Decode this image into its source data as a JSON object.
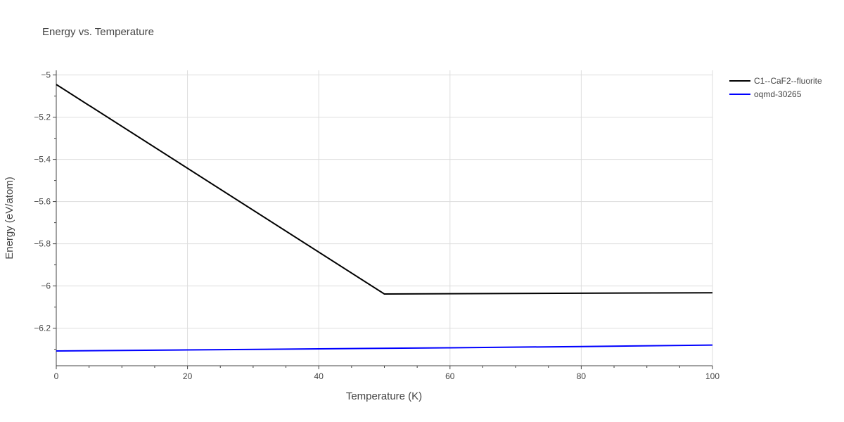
{
  "chart_data": {
    "type": "line",
    "title": "Energy vs. Temperature",
    "xlabel": "Temperature (K)",
    "ylabel": "Energy (eV/atom)",
    "xlim": [
      0,
      100
    ],
    "ylim": [
      -6.378,
      -4.978
    ],
    "x_ticks": [
      0,
      20,
      40,
      60,
      80,
      100
    ],
    "x_tick_labels": [
      "0",
      "20",
      "40",
      "60",
      "80",
      "100"
    ],
    "y_ticks": [
      -5,
      -5.2,
      -5.4,
      -5.6,
      -5.8,
      -6,
      -6.2
    ],
    "y_tick_labels": [
      "−5",
      "−5.2",
      "−5.4",
      "−5.6",
      "−5.8",
      "−6",
      "−6.2"
    ],
    "grid": true,
    "legend_position": "top-right, outside plot",
    "series": [
      {
        "name": "C1--CaF2--fluorite",
        "color": "#000000",
        "x": [
          0,
          50,
          100
        ],
        "y": [
          -5.045,
          -6.038,
          -6.032
        ]
      },
      {
        "name": "oqmd-30265",
        "color": "#0000ff",
        "x": [
          0,
          20,
          40,
          60,
          80,
          100
        ],
        "y": [
          -6.308,
          -6.303,
          -6.298,
          -6.293,
          -6.287,
          -6.28
        ]
      }
    ]
  }
}
